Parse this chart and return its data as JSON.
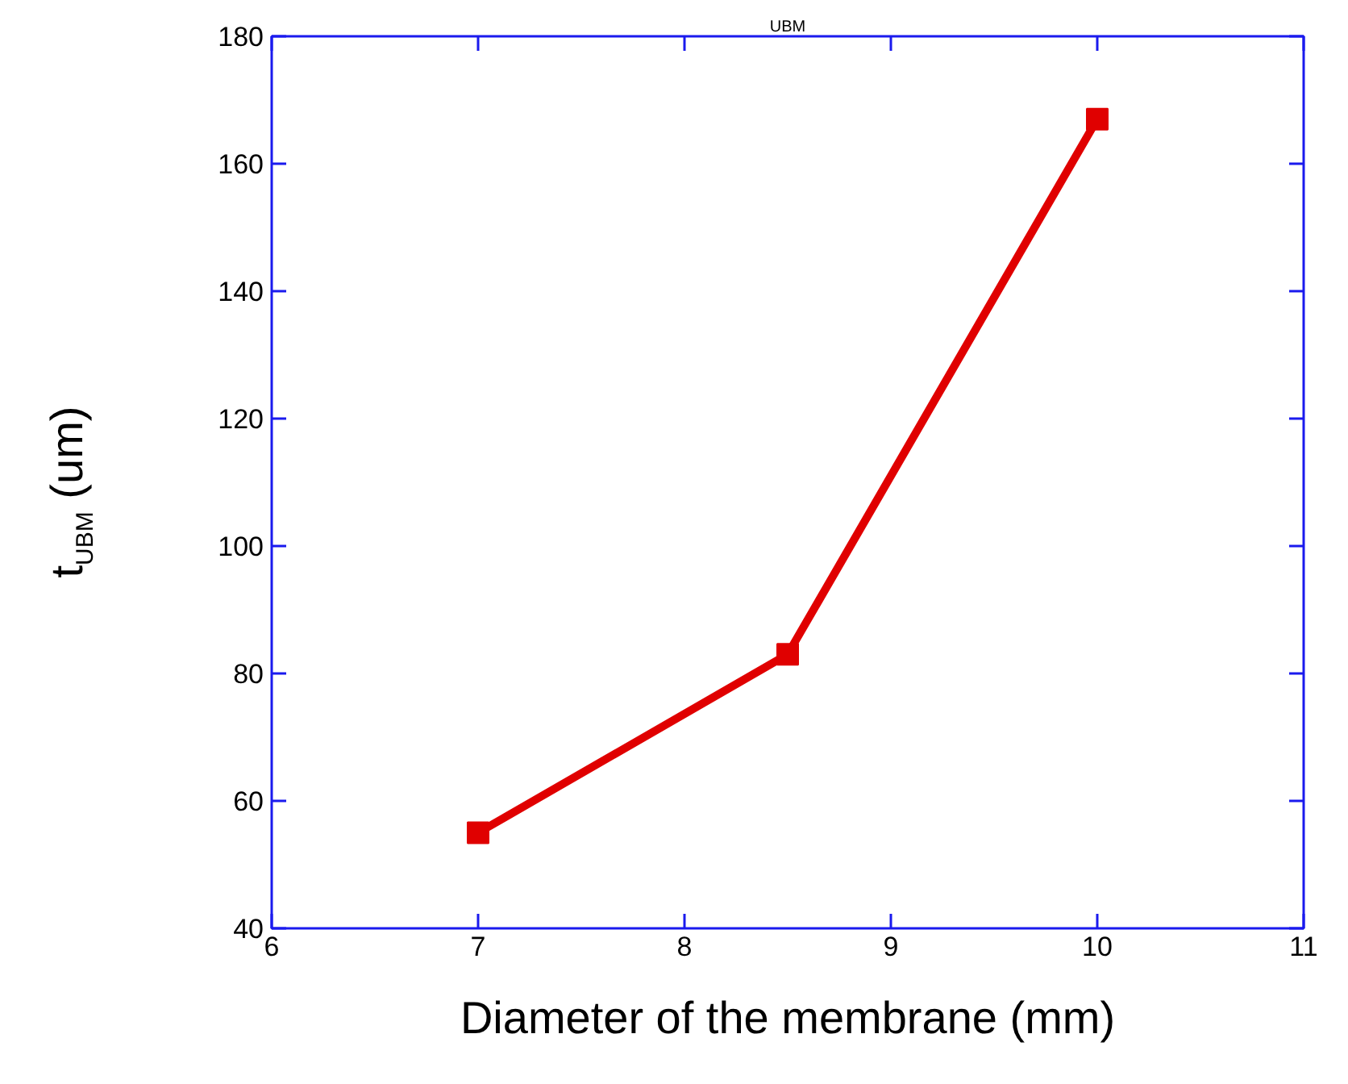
{
  "chart_data": {
    "type": "line",
    "title": "UBM",
    "xlabel": "Diameter of the membrane (mm)",
    "ylabel": "t$_{UBM}$ (um)",
    "x": [
      7,
      8.5,
      10
    ],
    "series": [
      {
        "color": "#e00000",
        "values": [
          55,
          83,
          167
        ]
      }
    ],
    "xlim": [
      6,
      11
    ],
    "xticks": [
      6,
      7,
      8,
      9,
      10,
      11
    ],
    "ylim": [
      40,
      180
    ],
    "yticks": [
      40,
      60,
      80,
      100,
      120,
      140,
      160,
      180
    ],
    "marker": "square",
    "line_style": "solid",
    "grid": false
  }
}
